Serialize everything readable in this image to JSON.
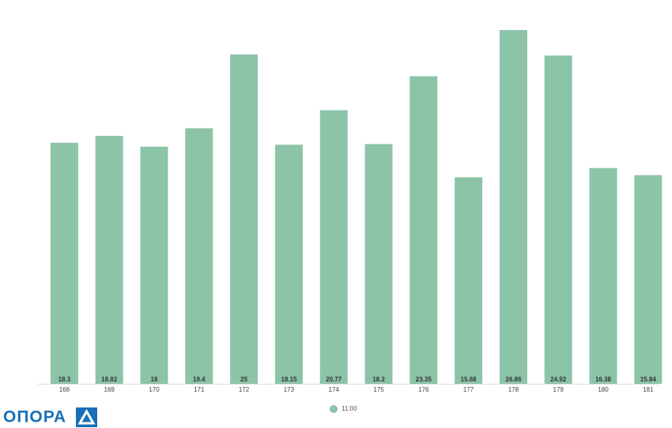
{
  "chart_data": {
    "type": "bar",
    "categories": [
      "168",
      "169",
      "170",
      "171",
      "172",
      "173",
      "174",
      "175",
      "176",
      "177",
      "178",
      "179",
      "180",
      "181"
    ],
    "series": [
      {
        "name": "11:00",
        "color": "#8cc4a8",
        "values": [
          18.3,
          18.82,
          18,
          19.4,
          25,
          18.15,
          20.77,
          18.2,
          23.35,
          15.68,
          26.86,
          24.92,
          16.38,
          15.84
        ]
      }
    ]
  },
  "logo": "ОПОРА"
}
